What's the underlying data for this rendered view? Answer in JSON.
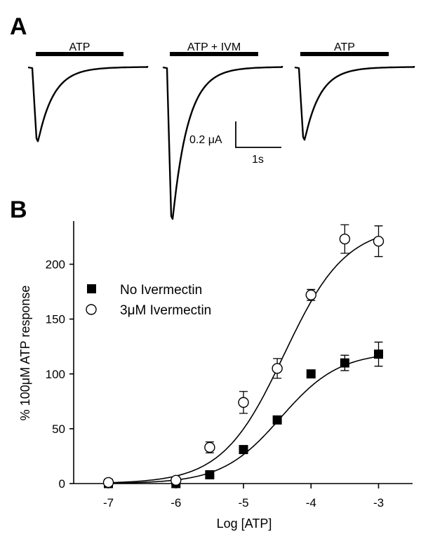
{
  "panel_a": {
    "letter": "A",
    "bars": [
      {
        "label": "ATP",
        "peak_rel": 0.49
      },
      {
        "label": "ATP + IVM",
        "peak_rel": 1.0
      },
      {
        "label": "ATP",
        "peak_rel": 0.48
      }
    ],
    "scale_amplitude_label": "0.2 μA",
    "scale_time_label": "1s"
  },
  "panel_b": {
    "letter": "B"
  },
  "chart_data": {
    "type": "scatter",
    "xlabel": "Log [ATP]",
    "ylabel": "% 100μM ATP response",
    "xlim": [
      -7.5,
      -2.5
    ],
    "ylim": [
      0,
      240
    ],
    "xticks": [
      -7,
      -6,
      -5,
      -4,
      -3
    ],
    "yticks": [
      0,
      50,
      100,
      150,
      200
    ],
    "legend_position": "center-left",
    "series": [
      {
        "name": "No  Ivermectin",
        "marker": "filled-square",
        "x": [
          -7,
          -6,
          -5.5,
          -5,
          -4.5,
          -4,
          -3.5,
          -3
        ],
        "y": [
          0,
          0,
          8,
          31,
          58,
          100,
          110,
          118
        ],
        "err": [
          0,
          0,
          0,
          0,
          0,
          0,
          7,
          11
        ],
        "fit": {
          "bottom": 0,
          "top": 120,
          "logEC50": -4.45,
          "hill": 1.0
        }
      },
      {
        "name": "3μM  Ivermectin",
        "marker": "open-circle",
        "x": [
          -7,
          -6,
          -5.5,
          -5,
          -4.5,
          -4,
          -3.5,
          -3
        ],
        "y": [
          1,
          3,
          33,
          74,
          105,
          172,
          223,
          221
        ],
        "err": [
          3,
          0,
          5,
          10,
          9,
          5,
          13,
          14
        ],
        "fit": {
          "bottom": 0,
          "top": 235,
          "logEC50": -4.4,
          "hill": 0.95
        }
      }
    ]
  }
}
